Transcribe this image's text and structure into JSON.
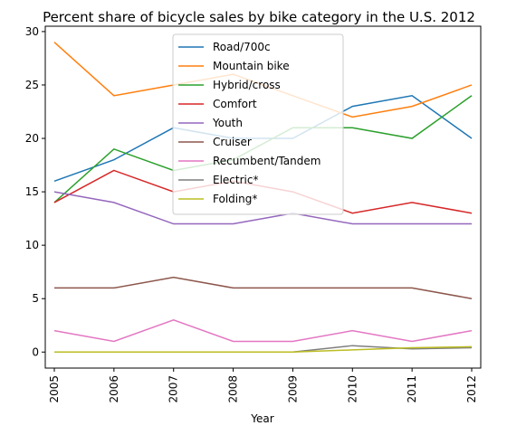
{
  "chart_data": {
    "type": "line",
    "title": "Percent share of bicycle sales by bike category in the U.S. 2012",
    "xlabel": "Year",
    "ylabel": "",
    "x": [
      "2005",
      "2006",
      "2007",
      "2008",
      "2009",
      "2010",
      "2011",
      "2012"
    ],
    "ylim": [
      -1.5,
      30.5
    ],
    "yticks": [
      0,
      5,
      10,
      15,
      20,
      25,
      30
    ],
    "grid": false,
    "legend": "top-center",
    "series": [
      {
        "name": "Road/700c",
        "color": "#1f77b4",
        "values": [
          16,
          18,
          21,
          20,
          20,
          23,
          24,
          20
        ]
      },
      {
        "name": "Mountain bike",
        "color": "#ff7f0e",
        "values": [
          29,
          24,
          25,
          26,
          24,
          22,
          23,
          25
        ]
      },
      {
        "name": "Hybrid/cross",
        "color": "#2ca02c",
        "values": [
          14,
          19,
          17,
          18,
          21,
          21,
          20,
          24
        ]
      },
      {
        "name": "Comfort",
        "color": "#d62728",
        "values": [
          14,
          17,
          15,
          16,
          15,
          13,
          14,
          13
        ]
      },
      {
        "name": "Youth",
        "color": "#9467bd",
        "values": [
          15,
          14,
          12,
          12,
          13,
          12,
          12,
          12
        ]
      },
      {
        "name": "Cruiser",
        "color": "#8c564b",
        "values": [
          6,
          6,
          7,
          6,
          6,
          6,
          6,
          5
        ]
      },
      {
        "name": "Recumbent/Tandem",
        "color": "#e377c2",
        "values": [
          2,
          1,
          3,
          1,
          1,
          2,
          1,
          2
        ]
      },
      {
        "name": "Electric*",
        "color": "#7f7f7f",
        "values": [
          0,
          0,
          0,
          0,
          0,
          0.6,
          0.3,
          0.4
        ]
      },
      {
        "name": "Folding*",
        "color": "#bcbd22",
        "values": [
          0,
          0,
          0,
          0,
          0,
          0.2,
          0.4,
          0.5
        ]
      }
    ]
  }
}
